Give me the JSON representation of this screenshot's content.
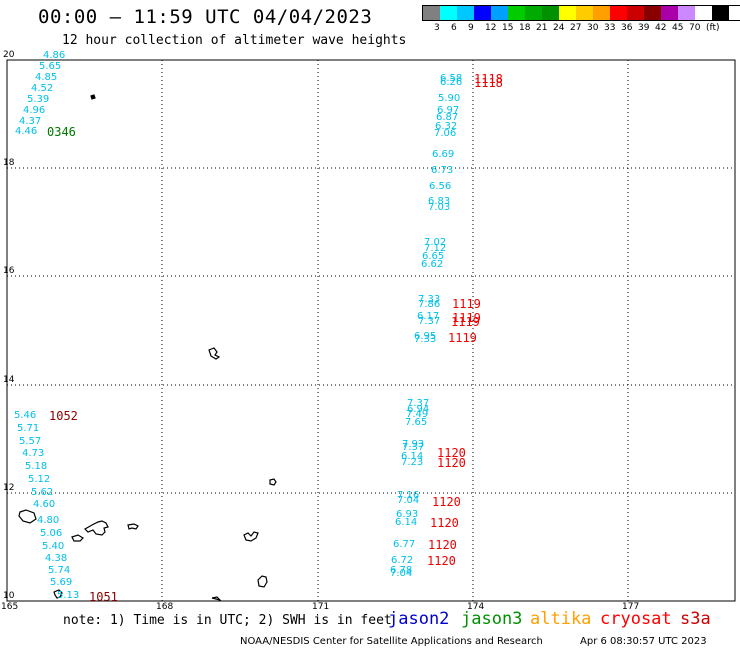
{
  "header": {
    "title": "00:00 – 11:59 UTC 04/04/2023",
    "subtitle": "12 hour collection of altimeter wave heights"
  },
  "legend": {
    "colors": [
      "#808080",
      "#00ffff",
      "#00c8ff",
      "#0000ff",
      "#00a0ff",
      "#00cc00",
      "#00aa00",
      "#009000",
      "#ffff00",
      "#ffcc00",
      "#ffa000",
      "#ff0000",
      "#cc0000",
      "#880000",
      "#aa00aa",
      "#cc88ff",
      "#ffffff",
      "#000000"
    ],
    "labels": [
      "3",
      "6",
      "9",
      "12",
      "15",
      "18",
      "21",
      "24",
      "27",
      "30",
      "33",
      "36",
      "39",
      "42",
      "45",
      "70",
      "(ft)"
    ]
  },
  "axes": {
    "y_labels": [
      "20",
      "18",
      "16",
      "14",
      "12",
      "10"
    ],
    "x_labels": [
      "165",
      "168",
      "171",
      "174",
      "177"
    ]
  },
  "observations": {
    "west_north": [
      "4.86",
      "5.65",
      "4.85",
      "4.52",
      "5.39",
      "4.96",
      "4.37",
      "4.46"
    ],
    "west_south": [
      "5.46",
      "5.71",
      "5.57",
      "4.73",
      "5.18",
      "5.12",
      "5.62",
      "4.60",
      "4.80",
      "5.06",
      "5.40",
      "4.38",
      "5.74",
      "5.69",
      "5.13"
    ],
    "east": [
      "6.58",
      "6.26",
      "5.90",
      "6.97",
      "6.87",
      "6.32",
      "7.06",
      "6.69",
      "6.73",
      "6.56",
      "6.83",
      "7.03",
      "7.02",
      "7.12",
      "6.65",
      "6.62",
      "7.33",
      "7.86",
      "6.17",
      "7.37",
      "6.95",
      "7.33",
      "7.37",
      "6.94",
      "7.49",
      "7.65",
      "7.93",
      "7.37",
      "6.14",
      "7.23",
      "7.16",
      "7.04",
      "6.93",
      "6.14",
      "6.77",
      "6.72",
      "6.78",
      "7.04"
    ]
  },
  "passes": {
    "p0346": "0346",
    "p1052": "1052",
    "p1051": "1051",
    "p1118a": "1118",
    "p1118b": "1118",
    "p1119a": "1119",
    "p1119b": "1119",
    "p1119c": "1119",
    "p1119d": "1119",
    "p1120a": "1120",
    "p1120b": "1120",
    "p1120c": "1120",
    "p1120d": "1120",
    "p1120e": "1120",
    "p1120f": "1120"
  },
  "footer": {
    "note": "note: 1) Time is in UTC; 2) SWH is in feet",
    "satellites": [
      "jason2",
      "jason3",
      "altika",
      "cryosat",
      "s3a"
    ],
    "satellite_colors": [
      "#0000cc",
      "#009000",
      "#ffa000",
      "#ff0000",
      "#cc0000"
    ],
    "credit": "NOAA/NESDIS Center for Satellite Applications and Research",
    "timestamp": "Apr  6 08:30:57 UTC 2023"
  },
  "colors": {
    "obs_cyan": "#00c0e8",
    "pass_green": "#007700",
    "pass_darkred": "#880000",
    "pass_red": "#ee0000"
  }
}
